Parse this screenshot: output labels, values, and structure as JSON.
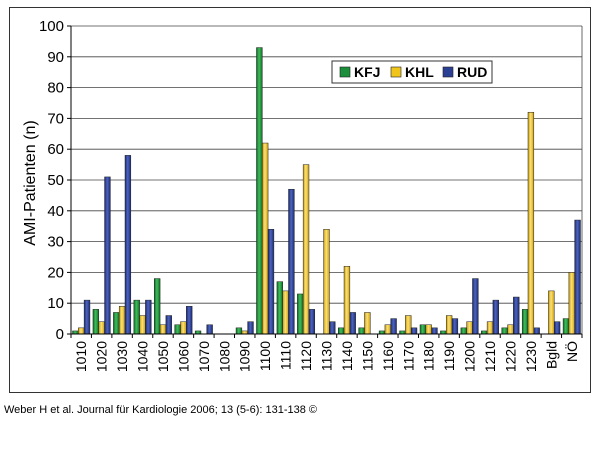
{
  "caption": "Weber H et al. Journal für Kardiologie 2006; 13 (5-6): 131-138 ©",
  "chart_data": {
    "type": "bar",
    "title": "",
    "xlabel": "",
    "ylabel": "AMI-Patienten (n)",
    "ylim": [
      0,
      100
    ],
    "yticks": [
      0,
      10,
      20,
      30,
      40,
      50,
      60,
      70,
      80,
      90,
      100
    ],
    "grid": true,
    "legend_position": "top-right",
    "categories": [
      "1010",
      "1020",
      "1030",
      "1040",
      "1050",
      "1060",
      "1070",
      "1080",
      "1090",
      "1100",
      "1110",
      "1120",
      "1130",
      "1140",
      "1150",
      "1160",
      "1170",
      "1180",
      "1190",
      "1200",
      "1210",
      "1220",
      "1230",
      "Bgld",
      "NÖ"
    ],
    "series": [
      {
        "name": "KFJ",
        "color": "#1c8f3a",
        "values": [
          1,
          8,
          7,
          11,
          18,
          3,
          1,
          0,
          2,
          93,
          17,
          13,
          0,
          2,
          2,
          1,
          1,
          3,
          1,
          2,
          1,
          2,
          8,
          0,
          5
        ]
      },
      {
        "name": "KHL",
        "color": "#f0c419",
        "values": [
          2,
          4,
          9,
          6,
          3,
          4,
          0,
          0,
          1,
          62,
          14,
          55,
          34,
          22,
          7,
          3,
          6,
          3,
          6,
          4,
          4,
          3,
          72,
          14,
          20
        ]
      },
      {
        "name": "RUD",
        "color": "#2b3f93",
        "values": [
          11,
          51,
          58,
          11,
          6,
          9,
          3,
          0,
          4,
          34,
          47,
          8,
          4,
          7,
          0,
          5,
          2,
          2,
          5,
          18,
          11,
          12,
          2,
          4,
          37
        ]
      }
    ]
  }
}
